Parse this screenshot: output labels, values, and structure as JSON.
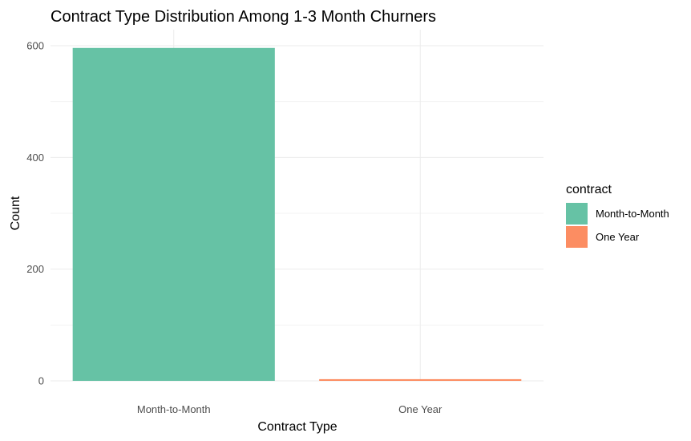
{
  "chart_data": {
    "type": "bar",
    "title": "Contract Type Distribution Among 1-3 Month Churners",
    "xlabel": "Contract Type",
    "ylabel": "Count",
    "categories": [
      "Month-to-Month",
      "One Year"
    ],
    "values": [
      596,
      3
    ],
    "colors": [
      "#66c2a5",
      "#fc8d62"
    ],
    "ylim": [
      0,
      620
    ],
    "yticks": [
      0,
      200,
      400,
      600
    ],
    "grid": true,
    "legend": {
      "title": "contract",
      "position": "right",
      "entries": [
        "Month-to-Month",
        "One Year"
      ]
    }
  }
}
